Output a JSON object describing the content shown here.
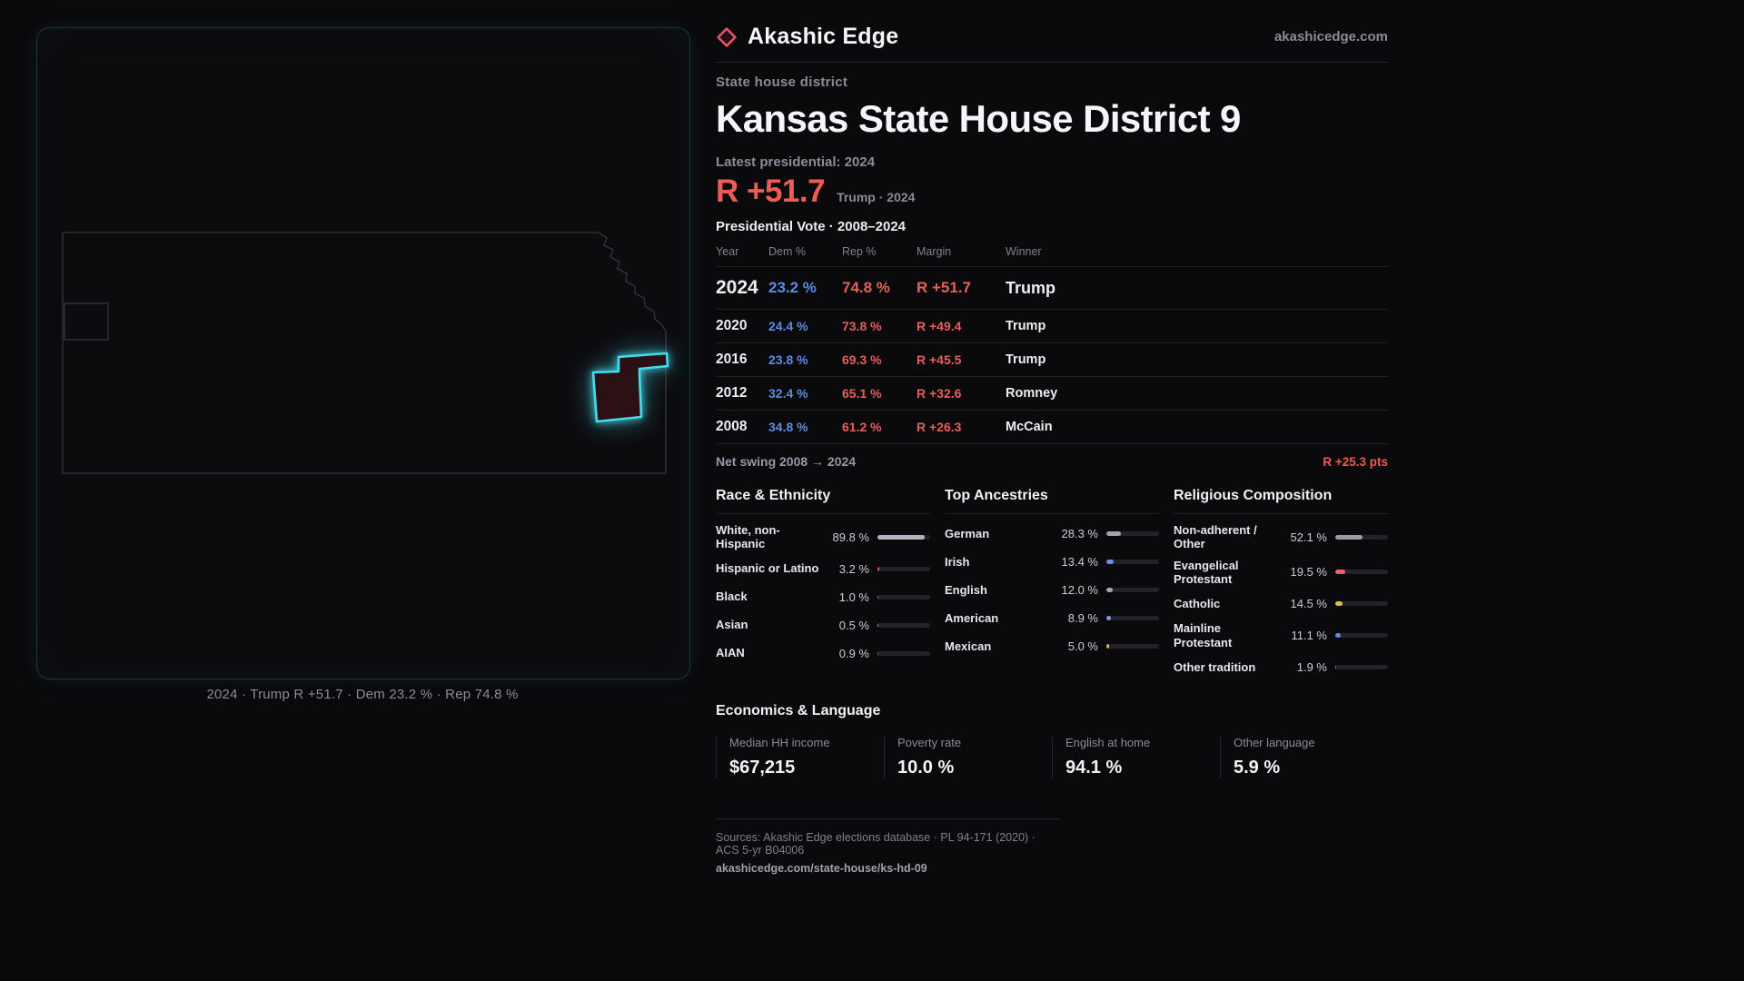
{
  "brand": {
    "name": "Akashic Edge",
    "domain": "akashicedge.com",
    "logo_color": "#e25565"
  },
  "header": {
    "kicker": "State house district",
    "title": "Kansas State House District 9",
    "latest_label": "Latest presidential: 2024",
    "margin_big": "R +51.7",
    "margin_sub": "Trump · 2024"
  },
  "map": {
    "caption": "2024 · Trump R +51.7 · Dem 23.2 % · Rep 74.8 %",
    "district_highlight_color": "#45dbee"
  },
  "colors": {
    "dem_blue": "#5b8de0",
    "rep_red": "#e4605a",
    "accent_red": "#ee5c55",
    "muted": "#8e8a96"
  },
  "pres_table": {
    "title": "Presidential Vote · 2008–2024",
    "columns": [
      "Year",
      "Dem %",
      "Rep %",
      "Margin",
      "Winner"
    ],
    "rows": [
      {
        "year": "2024",
        "dem": "23.2 %",
        "rep": "74.8 %",
        "margin": "R +51.7",
        "winner": "Trump"
      },
      {
        "year": "2020",
        "dem": "24.4 %",
        "rep": "73.8 %",
        "margin": "R +49.4",
        "winner": "Trump"
      },
      {
        "year": "2016",
        "dem": "23.8 %",
        "rep": "69.3 %",
        "margin": "R +45.5",
        "winner": "Trump"
      },
      {
        "year": "2012",
        "dem": "32.4 %",
        "rep": "65.1 %",
        "margin": "R +32.6",
        "winner": "Romney"
      },
      {
        "year": "2008",
        "dem": "34.8 %",
        "rep": "61.2 %",
        "margin": "R +26.3",
        "winner": "McCain"
      }
    ]
  },
  "swing": {
    "label": "Net swing 2008 → 2024",
    "value": "R +25.3 pts"
  },
  "race": {
    "title": "Race & Ethnicity",
    "items": [
      {
        "label": "White, non-Hispanic",
        "display": "89.8 %",
        "value": 89.8,
        "color": "#b6b2c4"
      },
      {
        "label": "Hispanic or Latino",
        "display": "3.2 %",
        "value": 3.2,
        "color": "#e0584f"
      },
      {
        "label": "Black",
        "display": "1.0 %",
        "value": 1.0,
        "color": "#8d7ae0"
      },
      {
        "label": "Asian",
        "display": "0.5 %",
        "value": 0.5,
        "color": "#45c6c9"
      },
      {
        "label": "AIAN",
        "display": "0.9 %",
        "value": 0.9,
        "color": "#c2503f"
      }
    ]
  },
  "ancestries": {
    "title": "Top Ancestries",
    "items": [
      {
        "label": "German",
        "display": "28.3 %",
        "value": 28.3,
        "color": "#a7a3b2"
      },
      {
        "label": "Irish",
        "display": "13.4 %",
        "value": 13.4,
        "color": "#6b8fe0"
      },
      {
        "label": "English",
        "display": "12.0 %",
        "value": 12.0,
        "color": "#a7a3b2"
      },
      {
        "label": "American",
        "display": "8.9 %",
        "value": 8.9,
        "color": "#7d99e8"
      },
      {
        "label": "Mexican",
        "display": "5.0 %",
        "value": 5.0,
        "color": "#e0b54b"
      }
    ]
  },
  "religion": {
    "title": "Religious Composition",
    "items": [
      {
        "label": "Non-adherent / Other",
        "display": "52.1 %",
        "value": 52.1,
        "color": "#9e9aa8"
      },
      {
        "label": "Evangelical Protestant",
        "display": "19.5 %",
        "value": 19.5,
        "color": "#e8636b"
      },
      {
        "label": "Catholic",
        "display": "14.5 %",
        "value": 14.5,
        "color": "#e3b94f"
      },
      {
        "label": "Mainline Protestant",
        "display": "11.1 %",
        "value": 11.1,
        "color": "#5f8ce0"
      },
      {
        "label": "Other tradition",
        "display": "1.9 %",
        "value": 1.9,
        "color": "#8e8a96"
      }
    ]
  },
  "econ": {
    "title": "Economics & Language",
    "stats": [
      {
        "label": "Median HH income",
        "value": "$67,215"
      },
      {
        "label": "Poverty rate",
        "value": "10.0 %"
      },
      {
        "label": "English at home",
        "value": "94.1 %"
      },
      {
        "label": "Other language",
        "value": "5.9 %"
      }
    ]
  },
  "footer": {
    "sources": "Sources: Akashic Edge elections database · PL 94-171 (2020) · ACS 5-yr B04006",
    "permalink": "akashicedge.com/state-house/ks-hd-09"
  }
}
